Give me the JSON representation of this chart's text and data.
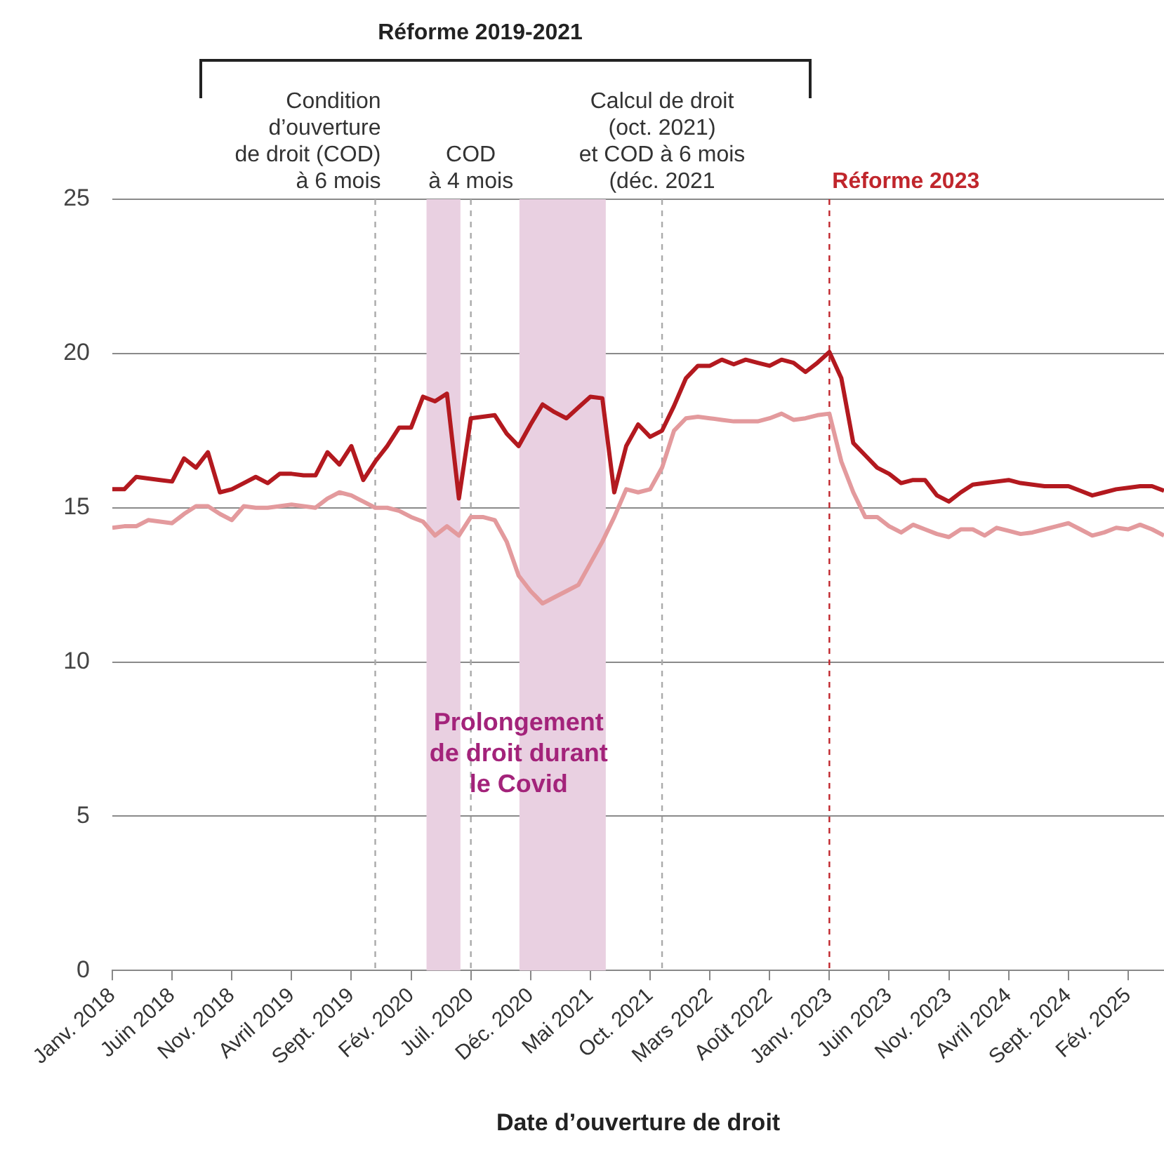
{
  "chart_data": {
    "type": "line",
    "xlabel": "Date d’ouverture de droit",
    "x": [
      "2018-01",
      "2018-02",
      "2018-03",
      "2018-04",
      "2018-05",
      "2018-06",
      "2018-07",
      "2018-08",
      "2018-09",
      "2018-10",
      "2018-11",
      "2018-12",
      "2019-01",
      "2019-02",
      "2019-03",
      "2019-04",
      "2019-05",
      "2019-06",
      "2019-07",
      "2019-08",
      "2019-09",
      "2019-10",
      "2019-11",
      "2019-12",
      "2020-01",
      "2020-02",
      "2020-03",
      "2020-04",
      "2020-05",
      "2020-06",
      "2020-07",
      "2020-08",
      "2020-09",
      "2020-10",
      "2020-11",
      "2020-12",
      "2021-01",
      "2021-02",
      "2021-03",
      "2021-04",
      "2021-05",
      "2021-06",
      "2021-07",
      "2021-08",
      "2021-09",
      "2021-10",
      "2021-11",
      "2021-12",
      "2022-01",
      "2022-02",
      "2022-03",
      "2022-04",
      "2022-05",
      "2022-06",
      "2022-07",
      "2022-08",
      "2022-09",
      "2022-10",
      "2022-11",
      "2022-12",
      "2023-01",
      "2023-02",
      "2023-03",
      "2023-04",
      "2023-05",
      "2023-06",
      "2023-07",
      "2023-08",
      "2023-09",
      "2023-10",
      "2023-11",
      "2023-12",
      "2024-01",
      "2024-02",
      "2024-03",
      "2024-04",
      "2024-05",
      "2024-06",
      "2024-07",
      "2024-08",
      "2024-09",
      "2024-10",
      "2024-11",
      "2024-12",
      "2025-01",
      "2025-02",
      "2025-03",
      "2025-04",
      "2025-05"
    ],
    "series": [
      {
        "color": "#b3191f",
        "values": [
          15.6,
          15.6,
          16.0,
          15.95,
          15.9,
          15.85,
          16.6,
          16.3,
          16.8,
          15.5,
          15.6,
          15.8,
          16.0,
          15.8,
          16.1,
          16.1,
          16.05,
          16.05,
          16.8,
          16.4,
          17.0,
          15.9,
          16.5,
          17.0,
          17.6,
          17.6,
          18.6,
          18.45,
          18.7,
          15.3,
          17.9,
          17.95,
          18.0,
          17.4,
          17.0,
          17.7,
          18.35,
          18.1,
          17.9,
          18.25,
          18.6,
          18.55,
          15.5,
          17.0,
          17.7,
          17.3,
          17.5,
          18.3,
          19.2,
          19.6,
          19.6,
          19.8,
          19.65,
          19.8,
          19.7,
          19.6,
          19.8,
          19.7,
          19.4,
          19.7,
          20.05,
          19.2,
          17.1,
          16.7,
          16.3,
          16.1,
          15.8,
          15.9,
          15.9,
          15.4,
          15.2,
          15.5,
          15.75,
          15.8,
          15.85,
          15.9,
          15.8,
          15.75,
          15.7,
          15.7,
          15.7,
          15.55,
          15.4,
          15.5,
          15.6,
          15.65,
          15.7,
          15.7,
          15.55
        ]
      },
      {
        "color": "#e39a9d",
        "values": [
          14.35,
          14.4,
          14.4,
          14.6,
          14.55,
          14.5,
          14.8,
          15.05,
          15.05,
          14.8,
          14.6,
          15.05,
          15.0,
          15.0,
          15.05,
          15.1,
          15.05,
          15.0,
          15.3,
          15.5,
          15.4,
          15.2,
          15.0,
          15.0,
          14.9,
          14.7,
          14.55,
          14.1,
          14.4,
          14.1,
          14.7,
          14.7,
          14.6,
          13.9,
          12.8,
          12.3,
          11.9,
          12.1,
          12.3,
          12.5,
          13.2,
          13.9,
          14.7,
          15.6,
          15.5,
          15.6,
          16.3,
          17.5,
          17.9,
          17.95,
          17.9,
          17.85,
          17.8,
          17.8,
          17.8,
          17.9,
          18.05,
          17.85,
          17.9,
          18.0,
          18.05,
          16.5,
          15.5,
          14.7,
          14.7,
          14.4,
          14.2,
          14.45,
          14.3,
          14.15,
          14.05,
          14.3,
          14.3,
          14.1,
          14.35,
          14.25,
          14.15,
          14.2,
          14.3,
          14.4,
          14.5,
          14.3,
          14.1,
          14.2,
          14.35,
          14.3,
          14.45,
          14.3,
          14.1
        ]
      }
    ],
    "xlim": [
      "2018-01",
      "2025-05"
    ],
    "xticks": [
      {
        "value": "2018-01",
        "label": "Janv. 2018"
      },
      {
        "value": "2018-06",
        "label": "Juin 2018"
      },
      {
        "value": "2018-11",
        "label": "Nov. 2018"
      },
      {
        "value": "2019-04",
        "label": "Avril 2019"
      },
      {
        "value": "2019-09",
        "label": "Sept. 2019"
      },
      {
        "value": "2020-02",
        "label": "Fév. 2020"
      },
      {
        "value": "2020-07",
        "label": "Juil. 2020"
      },
      {
        "value": "2020-12",
        "label": "Déc. 2020"
      },
      {
        "value": "2021-05",
        "label": "Mai 2021"
      },
      {
        "value": "2021-10",
        "label": "Oct. 2021"
      },
      {
        "value": "2022-03",
        "label": "Mars 2022"
      },
      {
        "value": "2022-08",
        "label": "Août 2022"
      },
      {
        "value": "2023-01",
        "label": "Janv. 2023"
      },
      {
        "value": "2023-06",
        "label": "Juin 2023"
      },
      {
        "value": "2023-11",
        "label": "Nov. 2023"
      },
      {
        "value": "2024-04",
        "label": "Avril 2024"
      },
      {
        "value": "2024-09",
        "label": "Sept. 2024"
      },
      {
        "value": "2025-02",
        "label": "Fév. 2025"
      }
    ],
    "ylim": [
      0,
      25
    ],
    "yticks": [
      0,
      5,
      10,
      15,
      20,
      25
    ],
    "grid": "y",
    "marker": "none",
    "line_style": "solid",
    "legend": false,
    "bands": [
      {
        "axis": "x",
        "from": "2020-03-10",
        "to": "2020-06-05",
        "color": "#e9d0e1"
      },
      {
        "axis": "x",
        "from": "2020-11-03",
        "to": "2021-06-10",
        "color": "#e9d0e1"
      }
    ],
    "ref_lines": [
      {
        "axis": "x",
        "value": "2019-11",
        "label": "Condition\nd’ouverture\nde droit (COD)\nà 6 mois",
        "color": "#aaaaaa",
        "line_style": "dashed"
      },
      {
        "axis": "x",
        "value": "2020-07",
        "label": "COD\nà 4 mois",
        "color": "#aaaaaa",
        "line_style": "dashed"
      },
      {
        "axis": "x",
        "value": "2021-11",
        "label": "Calcul de droit\n(oct. 2021)\net COD à 6 mois\n(déc. 2021",
        "color": "#aaaaaa",
        "line_style": "dashed"
      },
      {
        "axis": "x",
        "value": "2023-01",
        "label": "Réforme 2023",
        "color": "#c0262c",
        "line_style": "dashed"
      }
    ],
    "annotations": [
      "Réforme 2019-2021",
      {
        "text": "Prolongement\nde droit durant\nle Covid",
        "x": "2020-11",
        "y": 7
      }
    ]
  }
}
